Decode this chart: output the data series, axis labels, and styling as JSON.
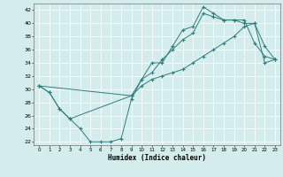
{
  "xlabel": "Humidex (Indice chaleur)",
  "xlim": [
    -0.5,
    23.5
  ],
  "ylim": [
    21.5,
    43.0
  ],
  "xticks": [
    0,
    1,
    2,
    3,
    4,
    5,
    6,
    7,
    8,
    9,
    10,
    11,
    12,
    13,
    14,
    15,
    16,
    17,
    18,
    19,
    20,
    21,
    22,
    23
  ],
  "yticks": [
    22,
    24,
    26,
    28,
    30,
    32,
    34,
    36,
    38,
    40,
    42
  ],
  "bg_color": "#d5ecec",
  "line_color": "#2e7d7d",
  "grid_color": "#ffffff",
  "line1_x": [
    0,
    1,
    2,
    3,
    4,
    5,
    6,
    7,
    8,
    9,
    10,
    11,
    12,
    13,
    14,
    15,
    16,
    17,
    18,
    19,
    20,
    21,
    22,
    23
  ],
  "line1_y": [
    30.5,
    29.5,
    27.0,
    25.5,
    24.0,
    22.0,
    22.0,
    22.0,
    22.5,
    28.5,
    31.5,
    34.0,
    34.0,
    36.5,
    39.0,
    39.5,
    42.5,
    41.5,
    40.5,
    40.5,
    40.5,
    37.0,
    35.0,
    34.5
  ],
  "line2_x": [
    0,
    1,
    2,
    3,
    9,
    10,
    11,
    12,
    13,
    14,
    15,
    16,
    17,
    18,
    19,
    20,
    21,
    22,
    23
  ],
  "line2_y": [
    30.5,
    29.5,
    27.0,
    25.5,
    29.0,
    31.5,
    32.5,
    34.5,
    36.0,
    37.5,
    38.5,
    41.5,
    41.0,
    40.5,
    40.5,
    40.0,
    40.0,
    36.5,
    34.5
  ],
  "line3_x": [
    0,
    9,
    10,
    11,
    12,
    13,
    14,
    15,
    16,
    17,
    18,
    19,
    20,
    21,
    22,
    23
  ],
  "line3_y": [
    30.5,
    29.0,
    30.5,
    31.5,
    32.0,
    32.5,
    33.0,
    34.0,
    35.0,
    36.0,
    37.0,
    38.0,
    39.5,
    40.0,
    34.0,
    34.5
  ]
}
